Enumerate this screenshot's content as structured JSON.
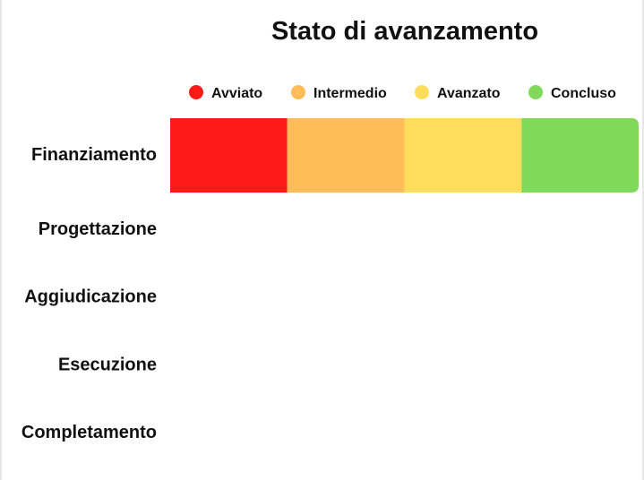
{
  "chart_data": {
    "type": "bar",
    "orientation": "horizontal",
    "stacked": true,
    "title": "Stato di avanzamento",
    "categories": [
      "Finanziamento",
      "Progettazione",
      "Aggiudicazione",
      "Esecuzione",
      "Completamento"
    ],
    "series": [
      {
        "name": "Avviato",
        "color": "#ff1a1a",
        "values": [
          1,
          0,
          0,
          0,
          0
        ]
      },
      {
        "name": "Intermedio",
        "color": "#ffbd5a",
        "values": [
          1,
          0,
          0,
          0,
          0
        ]
      },
      {
        "name": "Avanzato",
        "color": "#ffdd5c",
        "values": [
          1,
          0,
          0,
          0,
          0
        ]
      },
      {
        "name": "Concluso",
        "color": "#80d95a",
        "values": [
          1,
          0,
          0,
          0,
          0
        ]
      }
    ],
    "xlim": [
      0,
      4
    ],
    "grid": false,
    "legend": "top"
  }
}
